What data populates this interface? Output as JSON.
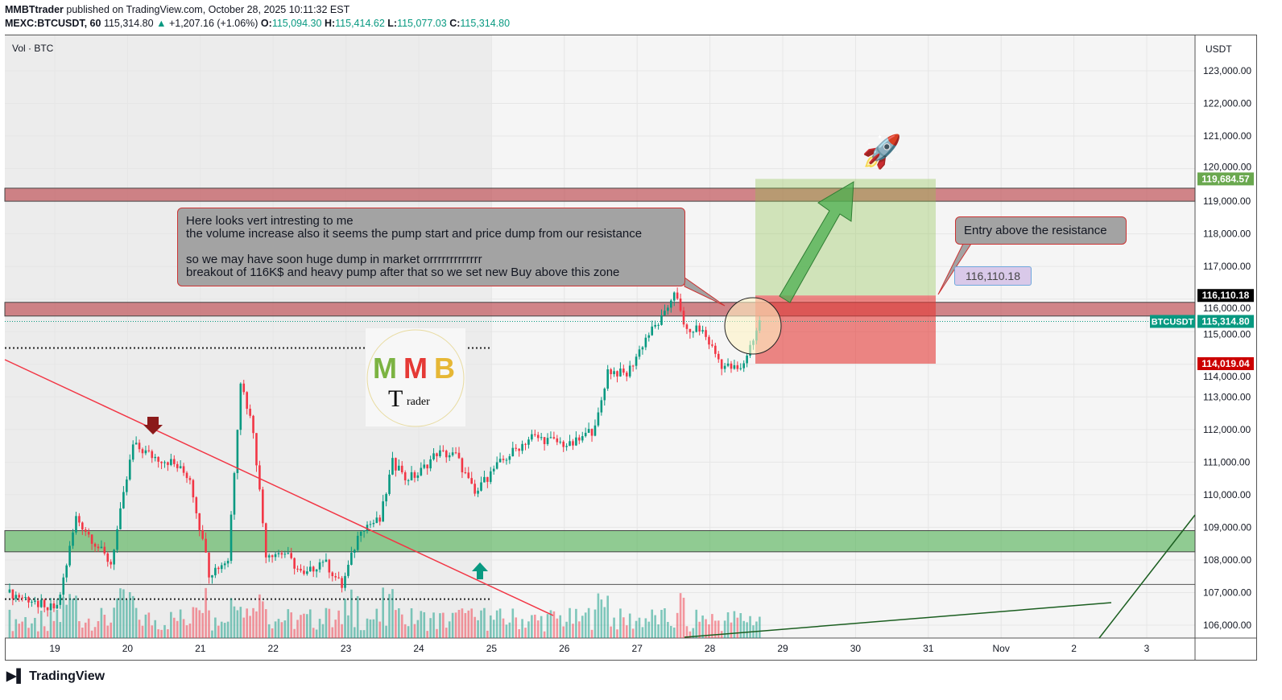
{
  "header": {
    "publisher": "MMBTtrader",
    "published_text": " published on TradingView.com, October 28, 2025 10:11:32 EST",
    "symbol": "MEXC:BTCUSDT, 60",
    "last": "115,314.80",
    "change": "+1,207.16 (+1.06%)",
    "o_label": "O:",
    "o": "115,094.30",
    "h_label": "H:",
    "h": "115,414.62",
    "l_label": "L:",
    "l": "115,077.03",
    "c_label": "C:",
    "c": "115,314.80"
  },
  "indicator_label": "Vol · BTC",
  "currency": "USDT",
  "brand": "TradingView",
  "colors": {
    "up": "#089981",
    "down": "#f23645",
    "zone_red": "#c0545a",
    "zone_green": "#4caf50",
    "target": "#6aa84f",
    "stop": "#cc0000"
  },
  "callouts": {
    "main": "Here looks vert intresting to me\nthe volume increase also it seems the pump start and price dump from our resistance\n\nso we may have soon huge dump in market orrrrrrrrrrrrr\nbreakout of 116K$ and heavy pump after that so we set new Buy above this zone",
    "entry": "Entry above the resistance",
    "price_tag": "116,110.18"
  },
  "chart_data": {
    "type": "candlestick",
    "timeframe": "60",
    "ylim": [
      105600,
      124000
    ],
    "y_ticks": [
      106000,
      107000,
      108000,
      109000,
      110000,
      111000,
      112000,
      113000,
      114000,
      115000,
      116000,
      117000,
      118000,
      119000,
      120000,
      121000,
      122000,
      123000
    ],
    "y_tick_labels": [
      "106,000.00",
      "107,000.00",
      "108,000.00",
      "109,000.00",
      "110,000.00",
      "111,000.00",
      "112,000.00",
      "113,000.00",
      "114,000.00",
      "115,000.00",
      "116,000.00",
      "117,000.00",
      "118,000.00",
      "119,000.00",
      "120,000.00",
      "121,000.00",
      "122,000.00",
      "123,000.00"
    ],
    "x_tick_labels": [
      "19",
      "20",
      "21",
      "22",
      "23",
      "24",
      "25",
      "26",
      "27",
      "28",
      "29",
      "30",
      "31",
      "Nov",
      "2",
      "3"
    ],
    "price_labels": [
      {
        "text": "119,684.57",
        "value": 119684.57,
        "color": "#6aa84f"
      },
      {
        "text": "116,110.18",
        "value": 116110.18,
        "color": "#000000"
      },
      {
        "text": "115,314.80",
        "value": 115314.8,
        "color": "#089981",
        "symbol": "BTCUSDT"
      },
      {
        "text": "114,019.04",
        "value": 114019.04,
        "color": "#cc0000"
      }
    ],
    "approx_price_path": [
      [
        0,
        107000
      ],
      [
        4,
        106900
      ],
      [
        16,
        106500
      ],
      [
        22,
        109300
      ],
      [
        28,
        108500
      ],
      [
        33,
        107900
      ],
      [
        40,
        111500
      ],
      [
        46,
        111200
      ],
      [
        52,
        111000
      ],
      [
        58,
        110500
      ],
      [
        64,
        107600
      ],
      [
        70,
        108000
      ],
      [
        74,
        113500
      ],
      [
        78,
        112000
      ],
      [
        82,
        108200
      ],
      [
        88,
        108200
      ],
      [
        94,
        107500
      ],
      [
        100,
        108000
      ],
      [
        106,
        107200
      ],
      [
        112,
        109000
      ],
      [
        118,
        109200
      ],
      [
        122,
        111000
      ],
      [
        126,
        110500
      ],
      [
        130,
        110600
      ],
      [
        136,
        111300
      ],
      [
        142,
        111200
      ],
      [
        148,
        110000
      ],
      [
        154,
        110800
      ],
      [
        166,
        111800
      ],
      [
        178,
        111500
      ],
      [
        186,
        112000
      ],
      [
        190,
        113800
      ],
      [
        196,
        113700
      ],
      [
        202,
        114800
      ],
      [
        208,
        115500
      ],
      [
        211,
        116300
      ],
      [
        214,
        115200
      ],
      [
        220,
        115000
      ],
      [
        226,
        114000
      ],
      [
        232,
        113800
      ],
      [
        236,
        114800
      ],
      [
        238,
        115314.8
      ]
    ],
    "zones": [
      {
        "kind": "resistance",
        "from": 119000,
        "to": 119400
      },
      {
        "kind": "resistance",
        "from": 115480,
        "to": 115900
      },
      {
        "kind": "support",
        "from": 108250,
        "to": 108900
      }
    ],
    "long_position": {
      "entry": 116110.18,
      "target": 119684.57,
      "stop": 114019.04
    },
    "levels": [
      114500,
      106800,
      107250
    ]
  }
}
